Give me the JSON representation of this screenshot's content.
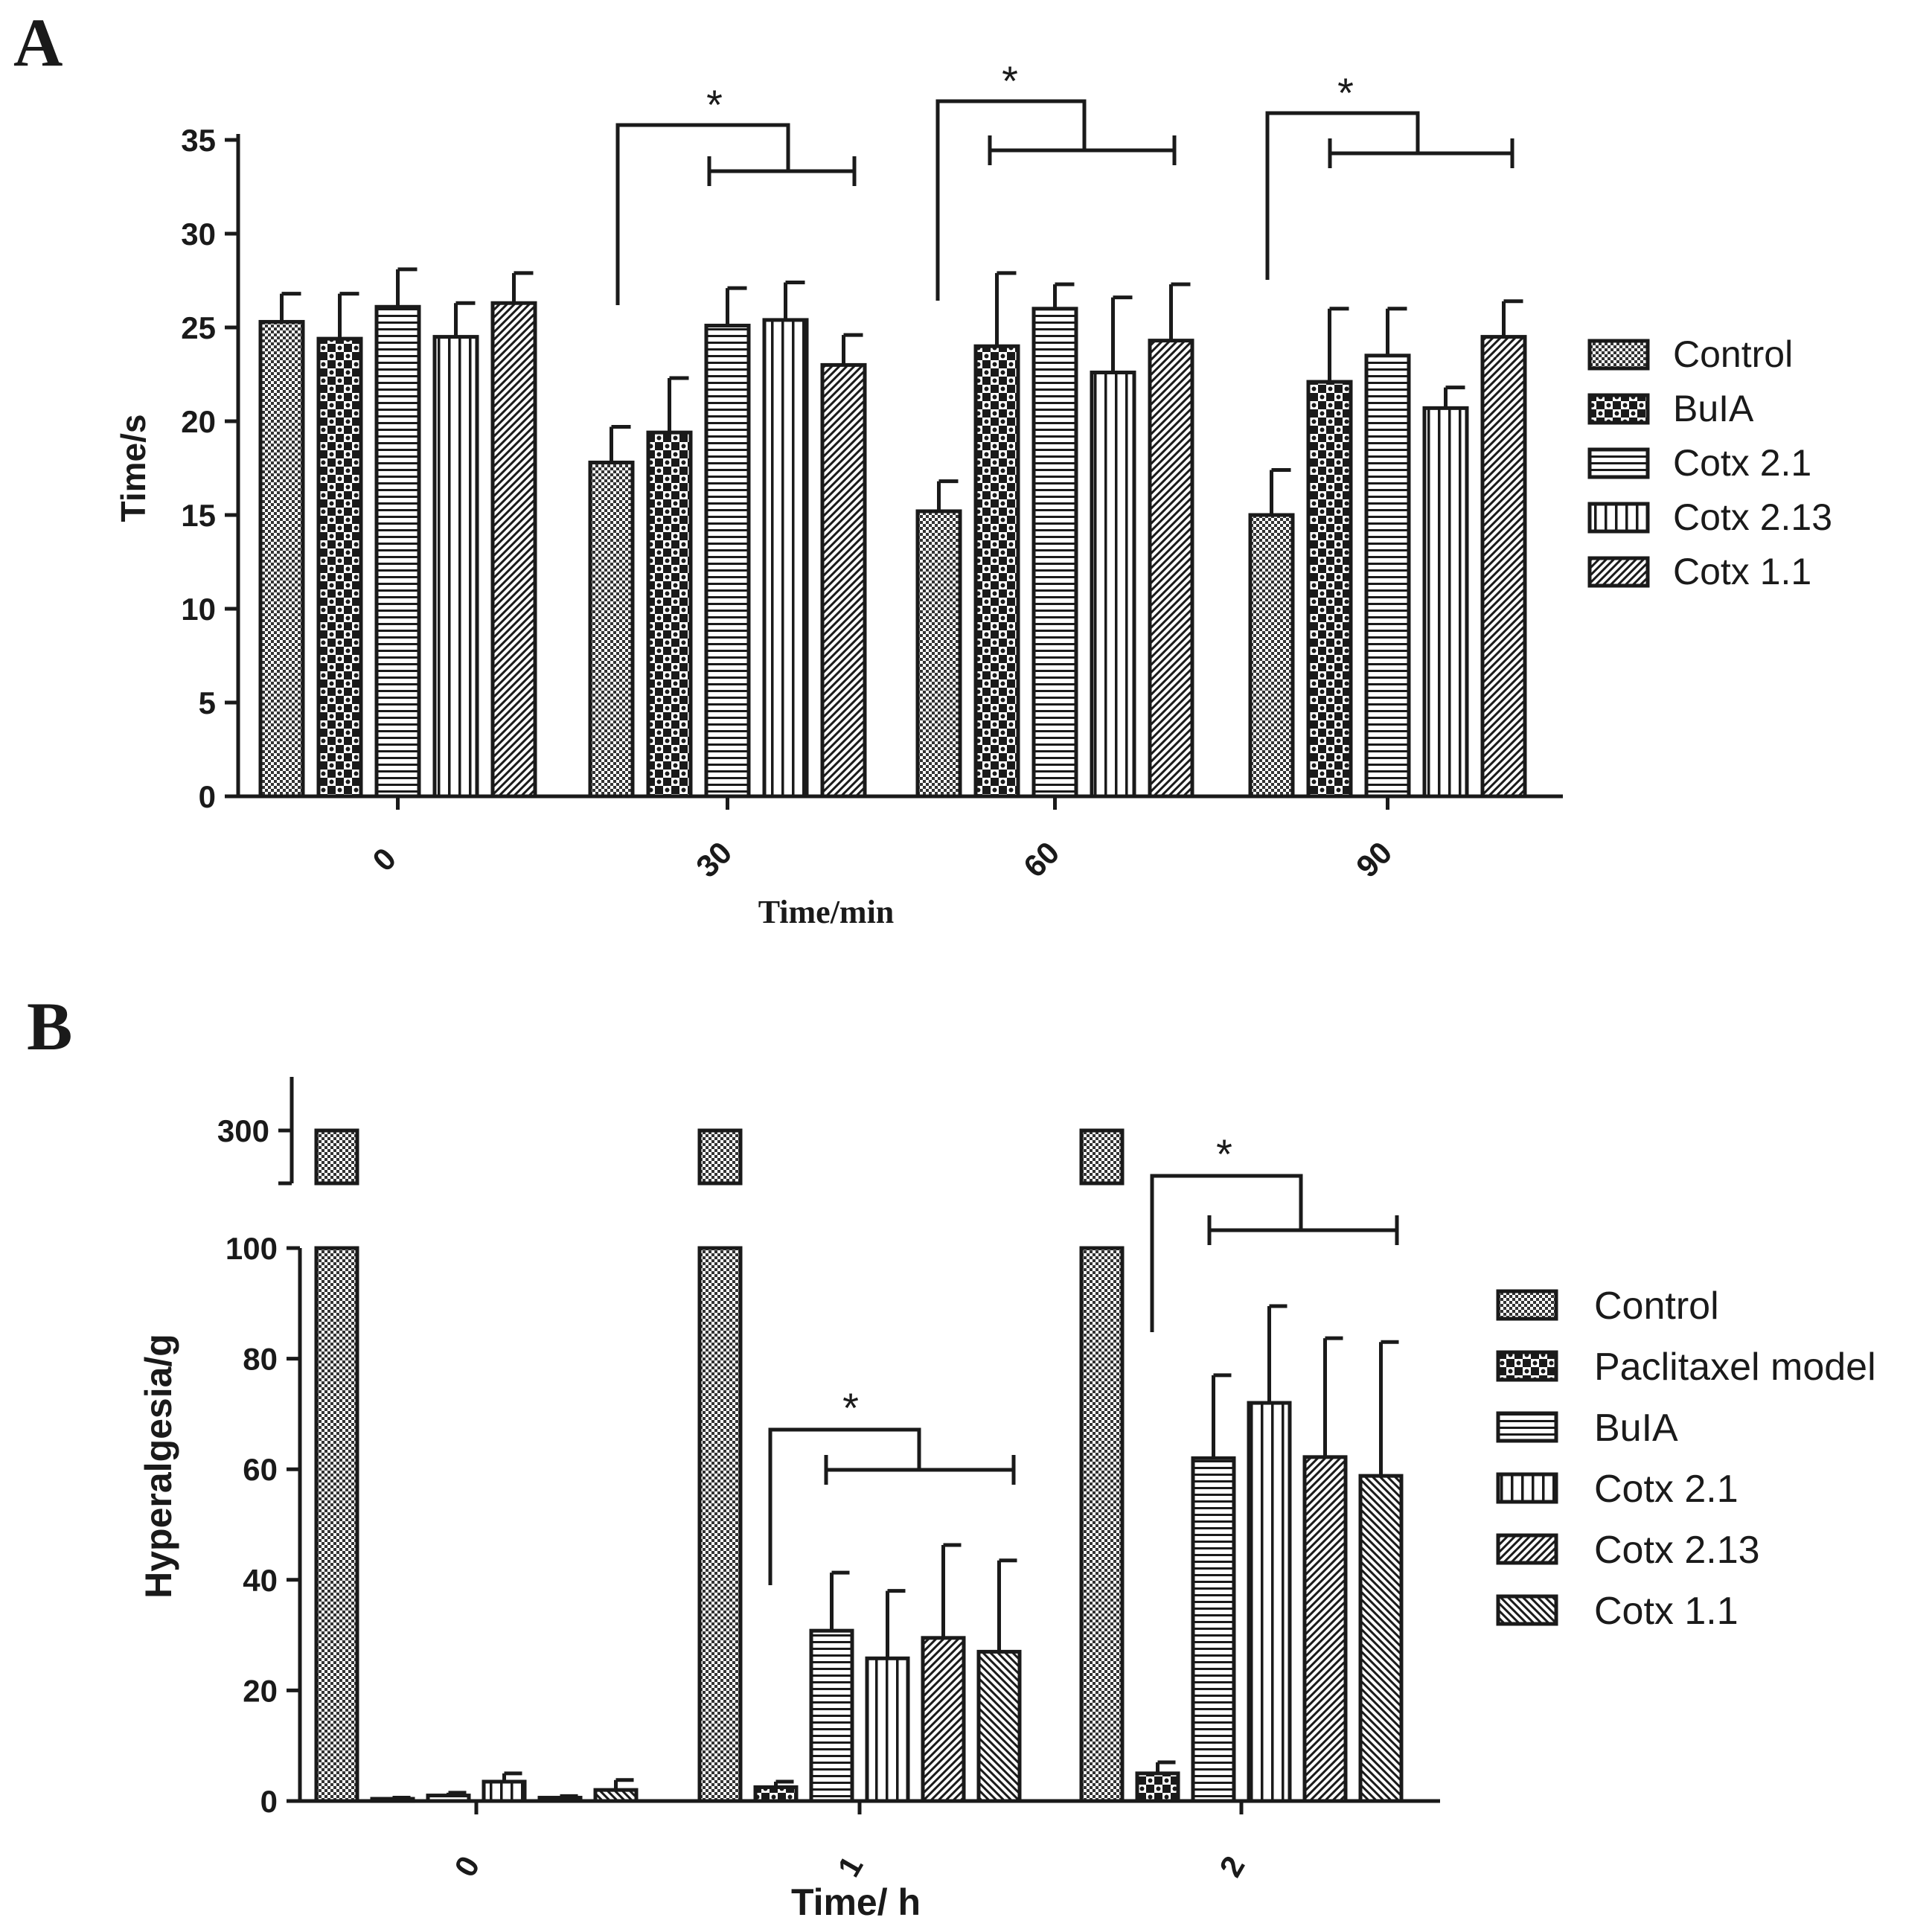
{
  "panel_labels": {
    "a": "A",
    "b": "B"
  },
  "chart_data": [
    {
      "type": "bar",
      "panel": "A",
      "categories": [
        "0",
        "30",
        "60",
        "90"
      ],
      "xlabel": "Time/min",
      "ylabel": "Time/s",
      "ylim": [
        0,
        35
      ],
      "yticks": [
        0,
        5,
        10,
        15,
        20,
        25,
        30,
        35
      ],
      "series": [
        {
          "name": "Control",
          "pattern": "dots",
          "values": [
            25.3,
            17.8,
            15.2,
            15.0
          ],
          "errors": [
            1.5,
            1.9,
            1.6,
            2.4
          ]
        },
        {
          "name": "BuIA",
          "pattern": "checker",
          "values": [
            24.4,
            19.4,
            24.0,
            22.1
          ],
          "errors": [
            2.4,
            2.9,
            3.9,
            3.9
          ]
        },
        {
          "name": "Cotx 2.1",
          "pattern": "hlines",
          "values": [
            26.1,
            25.1,
            26.0,
            23.5
          ],
          "errors": [
            2.0,
            2.0,
            1.3,
            2.5
          ]
        },
        {
          "name": "Cotx 2.13",
          "pattern": "vlines",
          "values": [
            24.5,
            25.4,
            22.6,
            20.7
          ],
          "errors": [
            1.8,
            2.0,
            4.0,
            1.1
          ]
        },
        {
          "name": "Cotx 1.1",
          "pattern": "diag",
          "values": [
            26.3,
            23.0,
            24.3,
            24.5
          ],
          "errors": [
            1.6,
            1.6,
            3.0,
            1.9
          ]
        }
      ],
      "significance": [
        {
          "category": "30",
          "label": "*"
        },
        {
          "category": "60",
          "label": "*"
        },
        {
          "category": "90",
          "label": "*"
        }
      ]
    },
    {
      "type": "bar",
      "panel": "B",
      "categories": [
        "0",
        "1",
        "2"
      ],
      "xlabel": "Time/ h",
      "ylabel": "Hyperalgesia/g",
      "ylim": [
        0,
        100
      ],
      "axis_break": {
        "upper_tick": 300
      },
      "yticks": [
        0,
        20,
        40,
        60,
        80,
        100,
        300
      ],
      "series": [
        {
          "name": "Control",
          "pattern": "dots",
          "values": [
            300,
            300,
            300
          ],
          "errors": [
            0,
            0,
            0
          ]
        },
        {
          "name": "Paclitaxel model",
          "pattern": "checker",
          "values": [
            0.4,
            2.5,
            5.0
          ],
          "errors": [
            0.2,
            1.0,
            2.0
          ]
        },
        {
          "name": "BuIA",
          "pattern": "hlines",
          "values": [
            1.0,
            30.8,
            62.0
          ],
          "errors": [
            0.5,
            10.5,
            15.0
          ]
        },
        {
          "name": "Cotx 2.1",
          "pattern": "vlines",
          "values": [
            3.5,
            25.8,
            72.0
          ],
          "errors": [
            1.5,
            12.2,
            17.5
          ]
        },
        {
          "name": "Cotx 2.13",
          "pattern": "diag",
          "values": [
            0.6,
            29.5,
            62.2
          ],
          "errors": [
            0.3,
            16.8,
            21.5
          ]
        },
        {
          "name": "Cotx 1.1",
          "pattern": "diag2",
          "values": [
            2.0,
            27.0,
            58.8
          ],
          "errors": [
            1.8,
            16.5,
            24.2
          ]
        }
      ],
      "significance": [
        {
          "category": "1",
          "label": "*"
        },
        {
          "category": "2",
          "label": "*"
        }
      ]
    }
  ]
}
